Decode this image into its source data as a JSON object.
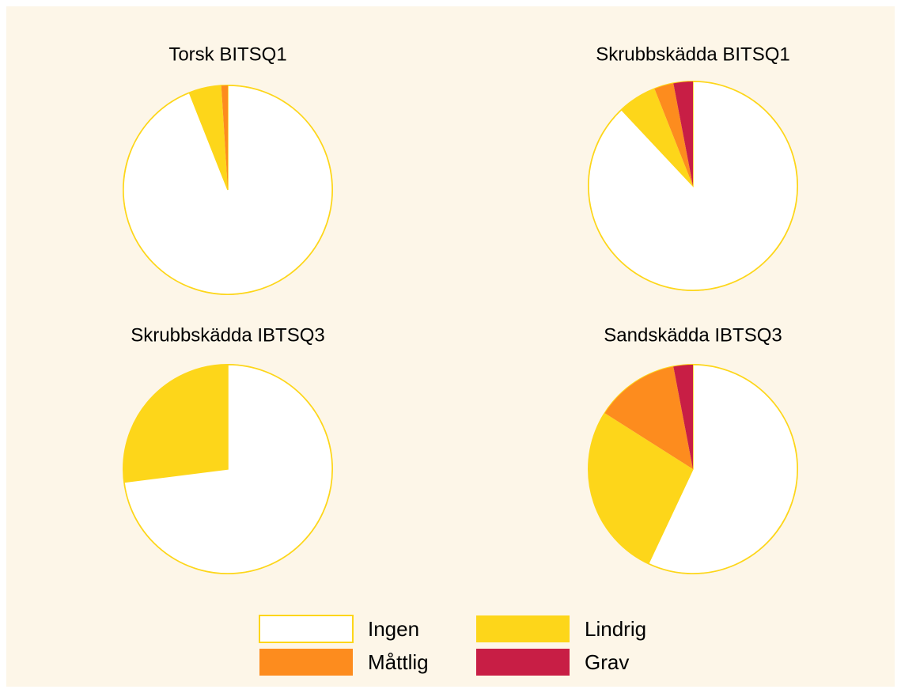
{
  "chart_data": [
    {
      "type": "pie",
      "title": "Torsk BITSQ1",
      "values": [
        94,
        5,
        1,
        0
      ]
    },
    {
      "type": "pie",
      "title": "Skrubbskädda BITSQ1",
      "values": [
        88,
        6,
        3,
        3
      ]
    },
    {
      "type": "pie",
      "title": "Skrubbskädda IBTSQ3",
      "values": [
        73,
        27,
        0,
        0
      ]
    },
    {
      "type": "pie",
      "title": "Sandskädda IBTSQ3",
      "values": [
        57,
        27,
        13,
        3
      ]
    }
  ],
  "legend": {
    "categories": [
      "Ingen",
      "Lindrig",
      "Måttlig",
      "Grav"
    ],
    "colors": [
      "#ffffff",
      "#fdd61a",
      "#fd8c1e",
      "#c81e45"
    ]
  }
}
